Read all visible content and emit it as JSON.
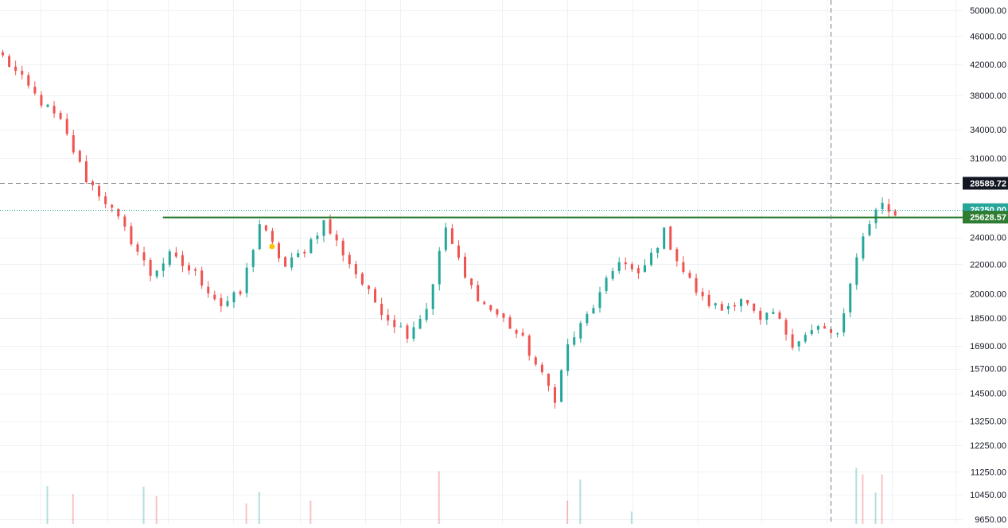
{
  "colors": {
    "up": "#26a69a",
    "down": "#ef5350",
    "grid": "#eef1f5",
    "axis_text": "#131722",
    "support_line": "#2e7d32",
    "crosshair": "#787b86",
    "crosshair_label_bg": "#131722",
    "last_price_bg": "#26a69a",
    "support_label_bg": "#2e7d32",
    "marker": "#ffc107"
  },
  "price_axis": {
    "scale": "log",
    "ticks": [
      50000,
      46000,
      42000,
      38000,
      34000,
      31000,
      24000,
      22000,
      20000,
      18500,
      16900,
      15700,
      14500,
      13250,
      12250,
      11250,
      10450,
      9650
    ],
    "tick_labels": [
      "50000.00",
      "46000.00",
      "42000.00",
      "38000.00",
      "34000.00",
      "31000.00",
      "24000.00",
      "22000.00",
      "20000.00",
      "18500.00",
      "16900.00",
      "15700.00",
      "14500.00",
      "13250.00",
      "12250.00",
      "11250.00",
      "10450.00",
      "9650.00"
    ]
  },
  "price_labels": {
    "crosshair": {
      "value": 28589.72,
      "text": "28589.72"
    },
    "last_price": {
      "value": 26250.0,
      "text": "26250.00"
    },
    "support": {
      "value": 25628.57,
      "text": "25628.57"
    }
  },
  "crosshair": {
    "vertical_bar_index": 129
  },
  "support_line": {
    "value": 25628.57,
    "start_bar_index": 25
  },
  "marker": {
    "bar_index": 42,
    "value": 23300
  },
  "chart_data": {
    "type": "candlestick",
    "title": "",
    "xlabel": "",
    "ylabel": "",
    "ylim": [
      9650,
      50000
    ],
    "grid": true,
    "path_points": [
      [
        0,
        43000
      ],
      [
        5,
        38000
      ],
      [
        9,
        34800
      ],
      [
        13,
        29000
      ],
      [
        16,
        27000
      ],
      [
        20,
        23800
      ],
      [
        23,
        21300
      ],
      [
        26,
        22600
      ],
      [
        30,
        21300
      ],
      [
        34,
        19300
      ],
      [
        37,
        20000
      ],
      [
        40,
        25100
      ],
      [
        44,
        21800
      ],
      [
        47,
        23100
      ],
      [
        50,
        25200
      ],
      [
        54,
        22100
      ],
      [
        57,
        20000
      ],
      [
        60,
        18500
      ],
      [
        63,
        17600
      ],
      [
        66,
        19100
      ],
      [
        69,
        24800
      ],
      [
        72,
        21000
      ],
      [
        75,
        19300
      ],
      [
        78,
        18400
      ],
      [
        81,
        17200
      ],
      [
        84,
        15300
      ],
      [
        86,
        14300
      ],
      [
        88,
        16900
      ],
      [
        90,
        18000
      ],
      [
        93,
        19900
      ],
      [
        96,
        22400
      ],
      [
        99,
        21100
      ],
      [
        103,
        24400
      ],
      [
        106,
        21500
      ],
      [
        109,
        19600
      ],
      [
        112,
        19000
      ],
      [
        115,
        19800
      ],
      [
        118,
        18200
      ],
      [
        120,
        18800
      ],
      [
        123,
        17100
      ],
      [
        127,
        17900
      ],
      [
        130,
        17500
      ],
      [
        131,
        18500
      ],
      [
        133,
        22800
      ],
      [
        135,
        25300
      ],
      [
        137,
        26900
      ],
      [
        139,
        25600
      ]
    ],
    "volume_scale_max": 100,
    "volume_spikes": [
      {
        "bar_index": 7,
        "value": 52,
        "up": true
      },
      {
        "bar_index": 11,
        "value": 41,
        "up": false
      },
      {
        "bar_index": 22,
        "value": 51,
        "up": true
      },
      {
        "bar_index": 24,
        "value": 38,
        "up": false
      },
      {
        "bar_index": 38,
        "value": 28,
        "up": false
      },
      {
        "bar_index": 40,
        "value": 44,
        "up": true
      },
      {
        "bar_index": 48,
        "value": 32,
        "up": false
      },
      {
        "bar_index": 68,
        "value": 72,
        "up": false
      },
      {
        "bar_index": 88,
        "value": 32,
        "up": false
      },
      {
        "bar_index": 90,
        "value": 61,
        "up": true
      },
      {
        "bar_index": 98,
        "value": 17,
        "up": true
      },
      {
        "bar_index": 133,
        "value": 77,
        "up": true
      },
      {
        "bar_index": 134,
        "value": 68,
        "up": false
      },
      {
        "bar_index": 136,
        "value": 43,
        "up": true
      },
      {
        "bar_index": 137,
        "value": 68,
        "up": false
      }
    ]
  }
}
